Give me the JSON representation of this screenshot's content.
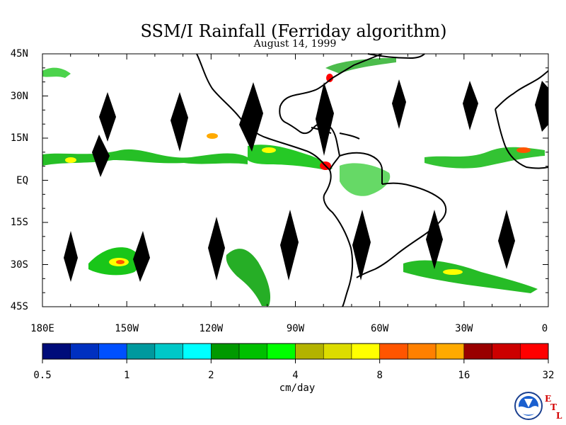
{
  "title": "SSM/I Rainfall (Ferriday algorithm)",
  "subtitle": "August 14, 1999",
  "axes": {
    "lat_labels": [
      "45N",
      "30N",
      "15N",
      "EQ",
      "15S",
      "30S",
      "45S"
    ],
    "lon_labels": [
      "180E",
      "150W",
      "120W",
      "90W",
      "60W",
      "30W",
      "0"
    ],
    "lat_range": [
      -45,
      45
    ],
    "lon_range": [
      -180,
      0
    ]
  },
  "colorbar": {
    "colors": [
      "#000c7a",
      "#0030c0",
      "#0050ff",
      "#00999e",
      "#00c8c8",
      "#00ffff",
      "#009900",
      "#00c000",
      "#00ff00",
      "#b3b300",
      "#dcdc00",
      "#ffff00",
      "#ff5500",
      "#ff8000",
      "#ffaa00",
      "#990000",
      "#cc0000",
      "#ff0000"
    ],
    "tick_labels": [
      "0.5",
      "1",
      "2",
      "4",
      "8",
      "16",
      "32"
    ],
    "units": "cm/day"
  },
  "logo": {
    "icon": "noaa-logo-icon",
    "text": "NOAA",
    "letters": [
      "E",
      "T",
      "L"
    ]
  }
}
